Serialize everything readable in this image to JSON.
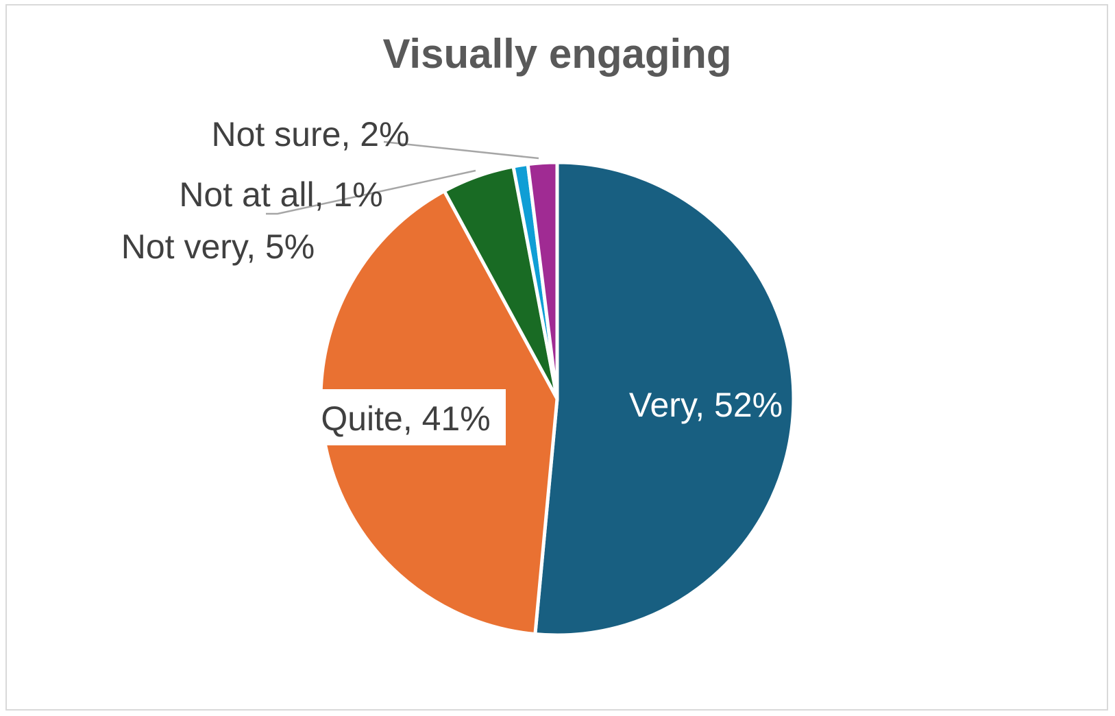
{
  "chart_data": {
    "type": "pie",
    "title": "Visually engaging",
    "slices": [
      {
        "name": "Very",
        "value": 52,
        "color": "#185f81",
        "label": "Very, 52%"
      },
      {
        "name": "Quite",
        "value": 41,
        "color": "#e97132",
        "label": "Quite, 41%"
      },
      {
        "name": "Not very",
        "value": 5,
        "color": "#196b24",
        "label": "Not very, 5%"
      },
      {
        "name": "Not at all",
        "value": 1,
        "color": "#0f9ed5",
        "label": "Not at all, 1%"
      },
      {
        "name": "Not sure",
        "value": 2,
        "color": "#a02b93",
        "label": "Not sure, 2%"
      }
    ],
    "legend": "none",
    "data_labels": "category, percentage"
  }
}
